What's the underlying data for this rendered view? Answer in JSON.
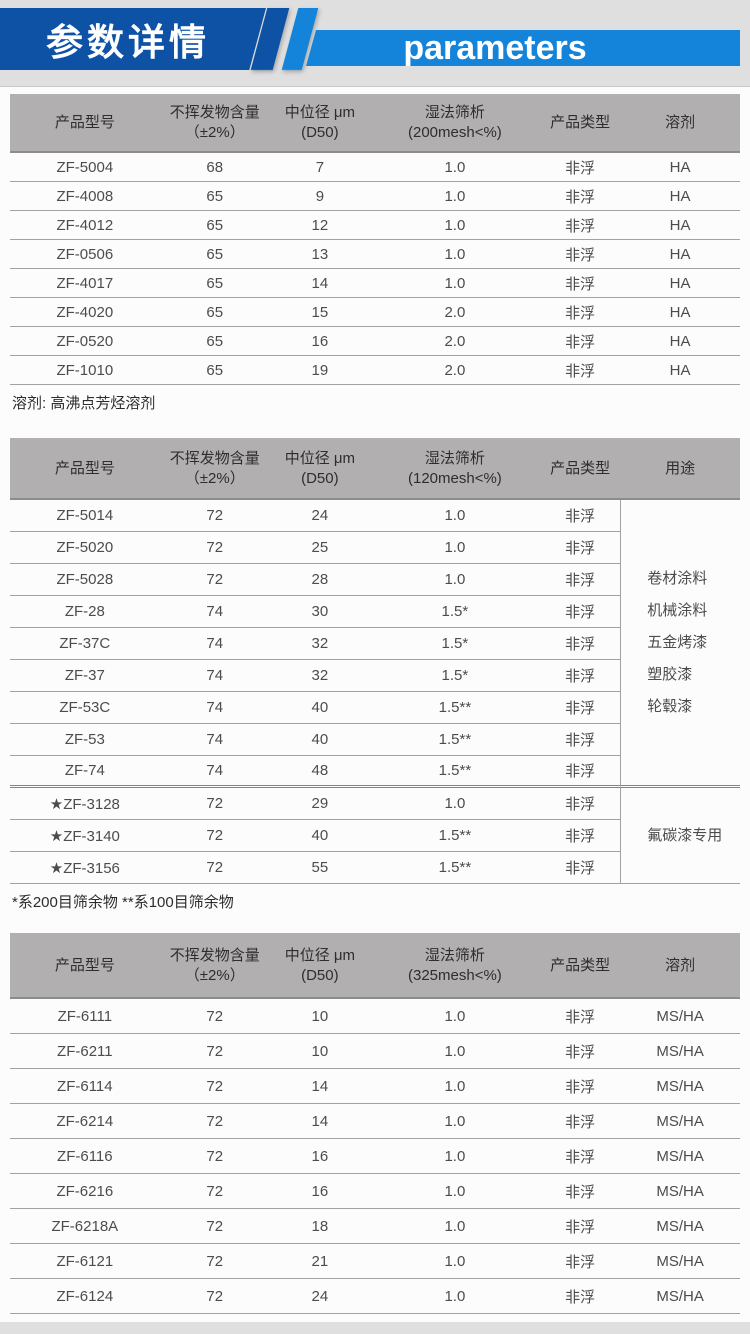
{
  "banner": {
    "title_cn": "参数详情",
    "title_en": "parameters",
    "colors": {
      "dark_blue": "#0e52a5",
      "light_blue": "#1484da"
    }
  },
  "colors": {
    "page_background": "#e0dfdf",
    "sheet_background": "#fcfcfc",
    "table_header_gray": "#b1afaf",
    "row_line_gray": "#a3a2a2"
  },
  "tables": [
    {
      "columns": [
        {
          "l1": "产品型号",
          "l2": ""
        },
        {
          "l1": "不挥发物含量",
          "l2": "（±2%）"
        },
        {
          "l1": "中位径 μm",
          "l2": "(D50)"
        },
        {
          "l1": "湿法筛析",
          "l2": "(200mesh<%)"
        },
        {
          "l1": "产品类型",
          "l2": ""
        },
        {
          "l1": "溶剂",
          "l2": ""
        }
      ],
      "rows": [
        {
          "model": "ZF-5004",
          "content": "68",
          "d50": "7",
          "sieve": "1.0",
          "type": "非浮",
          "solvent": "HA"
        },
        {
          "model": "ZF-4008",
          "content": "65",
          "d50": "9",
          "sieve": "1.0",
          "type": "非浮",
          "solvent": "HA"
        },
        {
          "model": "ZF-4012",
          "content": "65",
          "d50": "12",
          "sieve": "1.0",
          "type": "非浮",
          "solvent": "HA"
        },
        {
          "model": "ZF-0506",
          "content": "65",
          "d50": "13",
          "sieve": "1.0",
          "type": "非浮",
          "solvent": "HA"
        },
        {
          "model": "ZF-4017",
          "content": "65",
          "d50": "14",
          "sieve": "1.0",
          "type": "非浮",
          "solvent": "HA"
        },
        {
          "model": "ZF-4020",
          "content": "65",
          "d50": "15",
          "sieve": "2.0",
          "type": "非浮",
          "solvent": "HA"
        },
        {
          "model": "ZF-0520",
          "content": "65",
          "d50": "16",
          "sieve": "2.0",
          "type": "非浮",
          "solvent": "HA"
        },
        {
          "model": "ZF-1010",
          "content": "65",
          "d50": "19",
          "sieve": "2.0",
          "type": "非浮",
          "solvent": "HA"
        }
      ],
      "note": "溶剂: 高沸点芳烃溶剂"
    },
    {
      "columns": [
        {
          "l1": "产品型号",
          "l2": ""
        },
        {
          "l1": "不挥发物含量",
          "l2": "（±2%）"
        },
        {
          "l1": "中位径 μm",
          "l2": "(D50)"
        },
        {
          "l1": "湿法筛析",
          "l2": "(120mesh<%)"
        },
        {
          "l1": "产品类型",
          "l2": ""
        },
        {
          "l1": "用途",
          "l2": ""
        }
      ],
      "group1": {
        "rows": [
          {
            "model": "ZF-5014",
            "content": "72",
            "d50": "24",
            "sieve": "1.0",
            "type": "非浮"
          },
          {
            "model": "ZF-5020",
            "content": "72",
            "d50": "25",
            "sieve": "1.0",
            "type": "非浮"
          },
          {
            "model": "ZF-5028",
            "content": "72",
            "d50": "28",
            "sieve": "1.0",
            "type": "非浮"
          },
          {
            "model": "ZF-28",
            "content": "74",
            "d50": "30",
            "sieve": "1.5*",
            "type": "非浮"
          },
          {
            "model": "ZF-37C",
            "content": "74",
            "d50": "32",
            "sieve": "1.5*",
            "type": "非浮"
          },
          {
            "model": "ZF-37",
            "content": "74",
            "d50": "32",
            "sieve": "1.5*",
            "type": "非浮"
          },
          {
            "model": "ZF-53C",
            "content": "74",
            "d50": "40",
            "sieve": "1.5**",
            "type": "非浮"
          },
          {
            "model": "ZF-53",
            "content": "74",
            "d50": "40",
            "sieve": "1.5**",
            "type": "非浮"
          },
          {
            "model": "ZF-74",
            "content": "74",
            "d50": "48",
            "sieve": "1.5**",
            "type": "非浮"
          }
        ],
        "usage": [
          "卷材涂料",
          "机械涂料",
          "五金烤漆",
          "塑胶漆",
          "轮毂漆"
        ]
      },
      "group2": {
        "rows": [
          {
            "model": "★ZF-3128",
            "content": "72",
            "d50": "29",
            "sieve": "1.0",
            "type": "非浮"
          },
          {
            "model": "★ZF-3140",
            "content": "72",
            "d50": "40",
            "sieve": "1.5**",
            "type": "非浮"
          },
          {
            "model": "★ZF-3156",
            "content": "72",
            "d50": "55",
            "sieve": "1.5**",
            "type": "非浮"
          }
        ],
        "usage": [
          "氟碳漆专用"
        ]
      },
      "note": "*系200目筛余物  **系100目筛余物"
    },
    {
      "columns": [
        {
          "l1": "产品型号",
          "l2": ""
        },
        {
          "l1": "不挥发物含量",
          "l2": "（±2%）"
        },
        {
          "l1": "中位径 μm",
          "l2": "(D50)"
        },
        {
          "l1": "湿法筛析",
          "l2": "(325mesh<%)"
        },
        {
          "l1": "产品类型",
          "l2": ""
        },
        {
          "l1": "溶剂",
          "l2": ""
        }
      ],
      "rows": [
        {
          "model": "ZF-6111",
          "content": "72",
          "d50": "10",
          "sieve": "1.0",
          "type": "非浮",
          "solvent": "MS/HA"
        },
        {
          "model": "ZF-6211",
          "content": "72",
          "d50": "10",
          "sieve": "1.0",
          "type": "非浮",
          "solvent": "MS/HA"
        },
        {
          "model": "ZF-6114",
          "content": "72",
          "d50": "14",
          "sieve": "1.0",
          "type": "非浮",
          "solvent": "MS/HA"
        },
        {
          "model": "ZF-6214",
          "content": "72",
          "d50": "14",
          "sieve": "1.0",
          "type": "非浮",
          "solvent": "MS/HA"
        },
        {
          "model": "ZF-6116",
          "content": "72",
          "d50": "16",
          "sieve": "1.0",
          "type": "非浮",
          "solvent": "MS/HA"
        },
        {
          "model": "ZF-6216",
          "content": "72",
          "d50": "16",
          "sieve": "1.0",
          "type": "非浮",
          "solvent": "MS/HA"
        },
        {
          "model": "ZF-6218A",
          "content": "72",
          "d50": "18",
          "sieve": "1.0",
          "type": "非浮",
          "solvent": "MS/HA"
        },
        {
          "model": "ZF-6121",
          "content": "72",
          "d50": "21",
          "sieve": "1.0",
          "type": "非浮",
          "solvent": "MS/HA"
        },
        {
          "model": "ZF-6124",
          "content": "72",
          "d50": "24",
          "sieve": "1.0",
          "type": "非浮",
          "solvent": "MS/HA"
        }
      ]
    }
  ]
}
